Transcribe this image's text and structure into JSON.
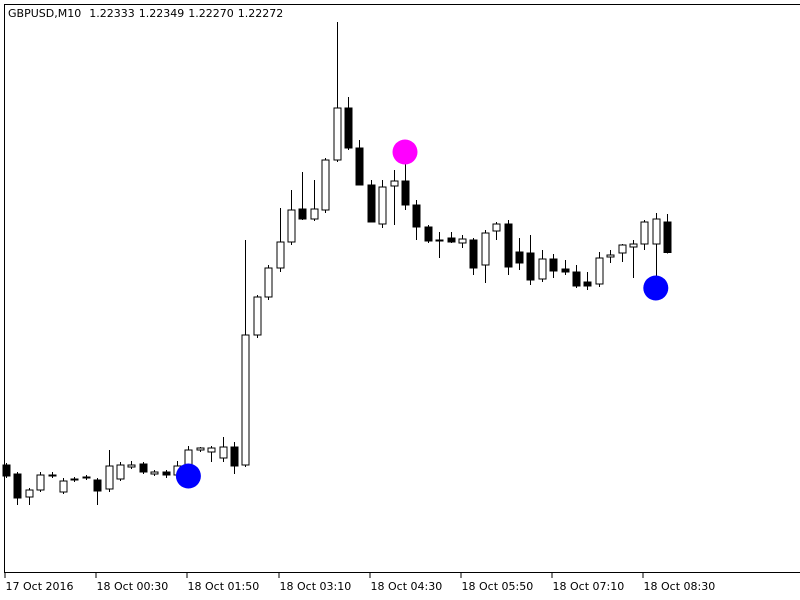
{
  "chart_data": {
    "type": "candlestick",
    "symbol": "GBPUSD,M10",
    "header_values": [
      1.22333,
      1.22349,
      {
        "value": 1.2227,
        "label": "1.22270"
      },
      1.22272
    ],
    "categories": [
      "17 Oct 2016",
      null,
      null,
      null,
      null,
      null,
      null,
      null,
      "18 Oct 00:30",
      null,
      null,
      null,
      null,
      null,
      null,
      null,
      "18 Oct 01:50",
      null,
      null,
      null,
      null,
      null,
      null,
      null,
      "18 Oct 03:10",
      null,
      null,
      null,
      null,
      null,
      null,
      null,
      "18 Oct 04:30",
      null,
      null,
      null,
      null,
      null,
      null,
      null,
      "18 Oct 05:50",
      null,
      null,
      null,
      null,
      null,
      null,
      null,
      "18 Oct 07:10",
      null,
      null,
      null,
      null,
      null,
      null,
      null,
      "18 Oct 08:30",
      null,
      null
    ],
    "open": [
      1.21847,
      1.21829,
      1.21783,
      1.21797,
      1.21825,
      1.21793,
      1.21817,
      1.21821,
      1.21817,
      1.21799,
      1.21819,
      1.21843,
      1.21849,
      1.21829,
      1.21833,
      1.21827,
      1.21845,
      1.21877,
      1.21873,
      1.21861,
      1.21883,
      1.21847,
      1.22107,
      1.22183,
      1.22241,
      1.22293,
      1.22359,
      1.22339,
      1.22357,
      1.22457,
      1.22561,
      1.22481,
      1.22407,
      1.22329,
      1.22405,
      1.22415,
      1.22367,
      1.22323,
      1.22295,
      1.22301,
      1.22291,
      1.22297,
      1.22247,
      1.22315,
      1.22329,
      1.22273,
      1.22271,
      1.22219,
      1.22259,
      1.22239,
      1.22233,
      1.22213,
      1.22209,
      1.22263,
      1.22271,
      1.22283,
      1.22289,
      1.22289,
      1.22333
    ],
    "high": [
      1.21851,
      1.21833,
      1.21801,
      1.21833,
      1.21833,
      1.21821,
      1.21823,
      1.21827,
      1.21821,
      1.21877,
      1.21853,
      1.21855,
      1.21853,
      1.21837,
      1.21837,
      1.21855,
      1.21885,
      1.21883,
      1.21885,
      1.21903,
      1.21893,
      1.22297,
      1.22187,
      1.22247,
      1.22361,
      1.22397,
      1.22433,
      1.22417,
      1.22461,
      1.22733,
      1.22583,
      1.22497,
      1.22417,
      1.22417,
      1.22437,
      1.22457,
      1.22377,
      1.22327,
      1.22313,
      1.22313,
      1.22307,
      1.22301,
      1.22317,
      1.22333,
      1.22337,
      1.22301,
      1.22307,
      1.22277,
      1.22269,
      1.22257,
      1.22247,
      1.22233,
      1.22273,
      1.22277,
      1.22289,
      1.22297,
      1.22337,
      1.22351,
      1.22349
    ],
    "low": [
      1.21821,
      1.21767,
      1.21767,
      1.21793,
      1.21821,
      1.21789,
      1.21813,
      1.21817,
      1.21767,
      1.21793,
      1.21815,
      1.21839,
      1.21829,
      1.21825,
      1.21821,
      1.21823,
      1.21837,
      1.21873,
      1.21853,
      1.21853,
      1.21829,
      1.21843,
      1.22101,
      1.22177,
      1.22233,
      1.22287,
      1.22337,
      1.22335,
      1.22351,
      1.22453,
      1.22477,
      1.22407,
      1.22333,
      1.22321,
      1.22327,
      1.22357,
      1.22297,
      1.22291,
      1.22261,
      1.22291,
      1.22281,
      1.22227,
      1.22211,
      1.22297,
      1.22227,
      1.22237,
      1.22207,
      1.22213,
      1.22221,
      1.22227,
      1.22201,
      1.22197,
      1.22203,
      1.22251,
      1.22253,
      1.22221,
      1.22277,
      1.22201,
      1.2227
    ],
    "close": [
      1.21825,
      1.21781,
      1.21797,
      1.21827,
      1.21827,
      1.21815,
      1.21819,
      1.21823,
      1.21795,
      1.21845,
      1.21847,
      1.21847,
      1.21833,
      1.21833,
      1.21827,
      1.21845,
      1.21877,
      1.21881,
      1.21881,
      1.21883,
      1.21845,
      1.22107,
      1.22183,
      1.22241,
      1.22293,
      1.22357,
      1.22339,
      1.22359,
      1.22457,
      1.22561,
      1.22481,
      1.22407,
      1.22333,
      1.22403,
      1.22415,
      1.22367,
      1.22323,
      1.22295,
      1.22297,
      1.22293,
      1.22299,
      1.22241,
      1.22311,
      1.22329,
      1.22243,
      1.22251,
      1.22217,
      1.22259,
      1.22235,
      1.22233,
      1.22205,
      1.22205,
      1.22261,
      1.22267,
      1.22287,
      1.22289,
      1.22333,
      1.22339,
      1.22272
    ],
    "buy_signals": [
      null,
      null,
      null,
      null,
      null,
      null,
      null,
      null,
      null,
      null,
      null,
      null,
      null,
      null,
      null,
      null,
      1.21825,
      null,
      null,
      null,
      null,
      null,
      null,
      null,
      null,
      null,
      null,
      null,
      null,
      null,
      null,
      null,
      null,
      null,
      null,
      null,
      null,
      null,
      null,
      null,
      null,
      null,
      null,
      null,
      null,
      null,
      null,
      null,
      null,
      null,
      null,
      null,
      null,
      null,
      null,
      null,
      null,
      1.22201,
      null
    ],
    "sell_signals": [
      null,
      null,
      null,
      null,
      null,
      null,
      null,
      null,
      null,
      null,
      null,
      null,
      null,
      null,
      null,
      null,
      null,
      null,
      null,
      null,
      null,
      null,
      null,
      null,
      null,
      null,
      null,
      null,
      null,
      null,
      null,
      null,
      null,
      null,
      null,
      1.22473,
      null,
      null,
      null,
      null,
      null,
      null,
      null,
      null,
      null,
      null,
      null,
      null,
      null,
      null,
      null,
      null,
      null,
      null,
      null,
      null,
      null,
      null,
      null
    ],
    "bull_color": "#ffffff",
    "bear_color": "#000000",
    "buy_color": "#0000ff",
    "sell_color": "#ff00ff",
    "ylim": [
      1.21631,
      1.22777
    ]
  }
}
